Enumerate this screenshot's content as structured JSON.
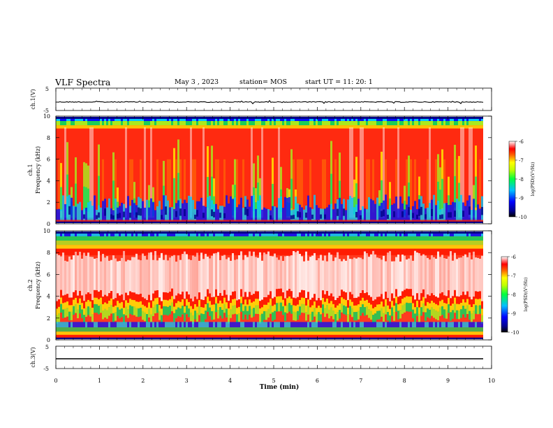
{
  "header": {
    "title": "VLF Spectra",
    "date": "May 3 , 2023",
    "station": "station= MOS",
    "start": "start UT = 11: 20: 1"
  },
  "chart_data": [
    {
      "type": "line",
      "ylabel": "ch.1(V)",
      "ylim": [
        -5,
        5
      ],
      "yticks": [
        "5",
        "-5"
      ],
      "series": [
        {
          "values": [
            -1.2,
            -1.2
          ]
        }
      ]
    },
    {
      "type": "heatmap",
      "ylabel": "ch.1\nFrequency (kHz)",
      "ylim": [
        0,
        10
      ],
      "yticks": [
        "0",
        "2",
        "4",
        "6",
        "8",
        "10"
      ],
      "colorbar": {
        "label": "log(PSD)(V²/Hz)",
        "range": [
          -10,
          -6
        ],
        "ticks": [
          "-6",
          "-7",
          "-8",
          "-9",
          "-10"
        ]
      }
    },
    {
      "type": "heatmap",
      "ylabel": "ch.2\nFrequency (kHz)",
      "ylim": [
        0,
        10
      ],
      "yticks": [
        "0",
        "2",
        "4",
        "6",
        "8",
        "10"
      ],
      "colorbar": {
        "label": "log(PSD)(V²/Hz)",
        "range": [
          -10,
          -6
        ],
        "ticks": [
          "-6",
          "-7",
          "-8",
          "-9",
          "-10"
        ]
      }
    },
    {
      "type": "line",
      "ylabel": "ch.3(V)",
      "ylim": [
        -5,
        5
      ],
      "yticks": [
        "5",
        "-5"
      ],
      "series": [
        {
          "values": [
            -1.0,
            -1.0
          ]
        }
      ]
    }
  ],
  "xaxis": {
    "label": "Time (min)",
    "range": [
      0,
      10
    ],
    "ticks": [
      "0",
      "1",
      "2",
      "3",
      "4",
      "5",
      "6",
      "7",
      "8",
      "9",
      "10"
    ]
  },
  "colors": {
    "scale": [
      "#000080",
      "#0000ff",
      "#00b0ff",
      "#00ff80",
      "#a0ff00",
      "#ffff00",
      "#ff8000",
      "#ff0000",
      "#ffffff"
    ]
  }
}
